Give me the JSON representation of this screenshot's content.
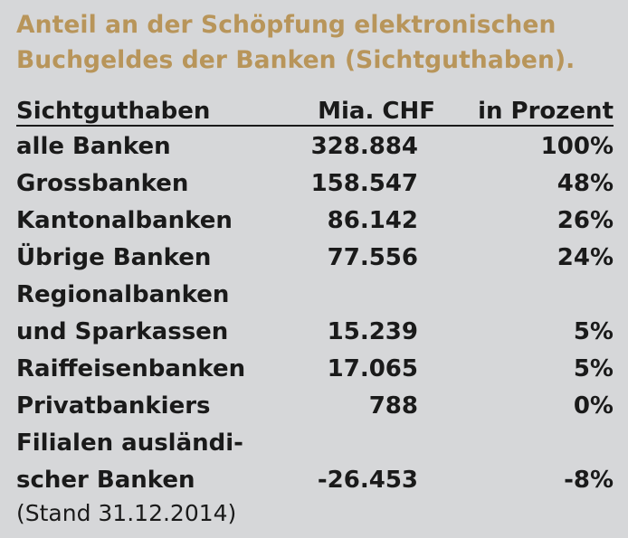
{
  "title": {
    "line1": "Anteil an der Schöpfung elektronischen",
    "line2": "Buchgeldes der Banken (Sichtguthaben)."
  },
  "table": {
    "headers": [
      "Sichtguthaben",
      "Mia. CHF",
      "in Prozent"
    ],
    "rows": [
      {
        "name": "alle Banken",
        "value": "328.884",
        "percent": "100%"
      },
      {
        "name": "Grossbanken",
        "value": "158.547",
        "percent": "48%"
      },
      {
        "name": "Kantonalbanken",
        "value": "86.142",
        "percent": "26%"
      },
      {
        "name": "Übrige Banken",
        "value": "77.556",
        "percent": "24%"
      },
      {
        "name": "Regionalbanken",
        "value": "",
        "percent": ""
      },
      {
        "name": "und Sparkassen",
        "value": "15.239",
        "percent": "5%"
      },
      {
        "name": "Raiffeisenbanken",
        "value": "17.065",
        "percent": "5%"
      },
      {
        "name": "Privatbankiers",
        "value": "788",
        "percent": "0%"
      },
      {
        "name": "Filialen ausländi-",
        "value": "",
        "percent": ""
      },
      {
        "name": "scher Banken",
        "value": "-26.453",
        "percent": "-8%"
      }
    ]
  },
  "footnote": "(Stand 31.12.2014)",
  "colors": {
    "background": "#d6d7d9",
    "title": "#b8955a",
    "text": "#1a1a1a"
  }
}
